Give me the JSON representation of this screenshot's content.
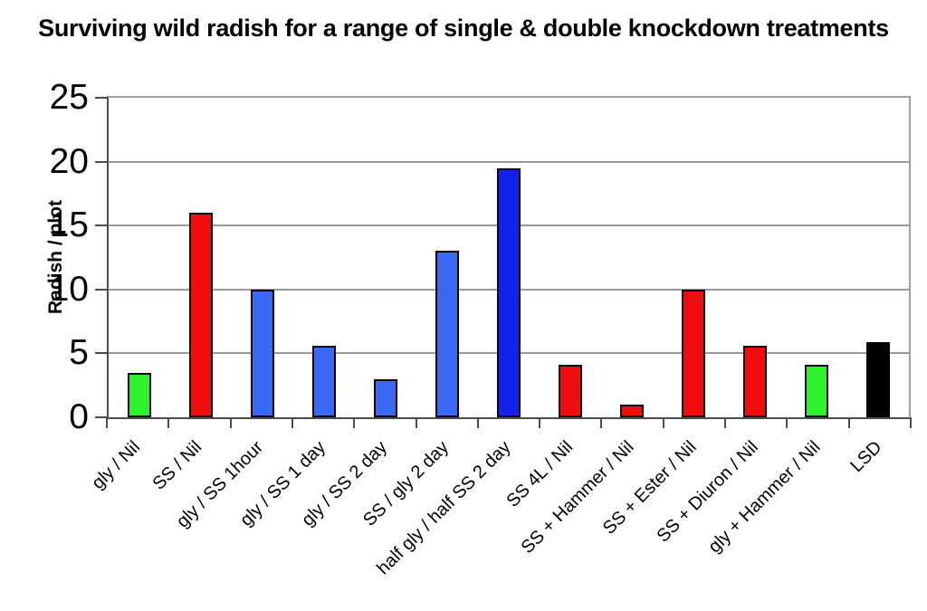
{
  "chart_data": {
    "type": "bar",
    "title": "Surviving wild radish for a range of single & double knockdown treatments",
    "xlabel": "",
    "ylabel": "Radish / plot",
    "ylim": [
      0,
      25
    ],
    "yticks": [
      0,
      5,
      10,
      15,
      20,
      25
    ],
    "grid": true,
    "legend": false,
    "categories": [
      "gly / Nil",
      "SS / Nil",
      "gly / SS 1hour",
      "gly / SS 1 day",
      "gly / SS 2 day",
      "SS / gly 2 day",
      "half gly / half SS 2 day",
      "SS 4L / Nil",
      "SS + Hammer / Nil",
      "SS + Ester / Nil",
      "SS + Diuron / Nil",
      "gly + Hammer / Nil",
      "LSD"
    ],
    "values": [
      3.5,
      16,
      10,
      5.6,
      3,
      13,
      19.5,
      4.1,
      1,
      10,
      5.6,
      4.1,
      5.9
    ],
    "bar_colors": [
      "#2CF32C",
      "#F20D0D",
      "#3A6AF5",
      "#3A6AF5",
      "#3A6AF5",
      "#3A6AF5",
      "#1222EF",
      "#F20D0D",
      "#F20D0D",
      "#F20D0D",
      "#F20D0D",
      "#2CF32C",
      "#000000"
    ],
    "bar_border_color": "#000000",
    "gridline_color": "#999999",
    "axis_color": "#4d4d4d",
    "frame_color": "#a0a0a0",
    "background_color": "#ffffff"
  }
}
